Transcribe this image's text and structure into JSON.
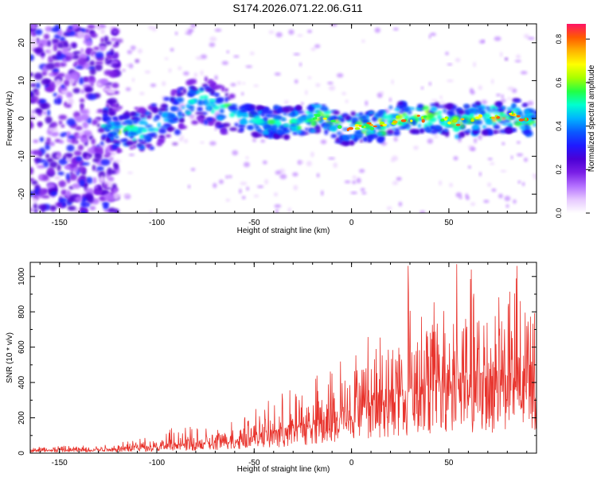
{
  "title": "S174.2026.071.22.06.G11",
  "colors": {
    "snr_line": "#e8332c",
    "frame": "#000000",
    "colormap": [
      "#ffffff",
      "#e6c8ff",
      "#b470ff",
      "#7a1fe6",
      "#4b00d6",
      "#1f1aff",
      "#0a5aff",
      "#00b4ff",
      "#00ffd0",
      "#22ff44",
      "#a8ff00",
      "#ffff00",
      "#ffb400",
      "#ff5a00",
      "#ff1466"
    ]
  },
  "chart_data": [
    {
      "type": "heatmap",
      "name": "spectrogram",
      "xlabel": "Height of straight line (km)",
      "ylabel": "Frequency (Hz)",
      "xlim": [
        -165,
        95
      ],
      "ylim": [
        -25,
        25
      ],
      "x_ticks": [
        -150,
        -100,
        -50,
        0,
        50
      ],
      "x_tick_labels": [
        "-150",
        "-100",
        "-50",
        "0",
        "50"
      ],
      "y_ticks": [
        -20,
        -10,
        0,
        10,
        20
      ],
      "y_tick_labels": [
        "-20",
        "-10",
        "0",
        "10",
        "20"
      ],
      "colorbar": {
        "label": "Normalized spectral amplitude",
        "range": [
          0.0,
          0.87
        ],
        "ticks": [
          0.0,
          0.2,
          0.4,
          0.6,
          0.8
        ],
        "tick_labels": [
          "0.0",
          "0.2",
          "0.4",
          "0.6",
          "0.8"
        ]
      },
      "ridge": {
        "x": [
          -125,
          -115,
          -105,
          -95,
          -85,
          -75,
          -65,
          -55,
          -45,
          -35,
          -25,
          -15,
          -5,
          5,
          15,
          25,
          35,
          45,
          55,
          65,
          75,
          85,
          95
        ],
        "y": [
          -2,
          -3,
          -3,
          0,
          4,
          5,
          2,
          0,
          -1,
          -1,
          -1,
          1,
          -3,
          -2,
          -2,
          0,
          0,
          0,
          -1,
          0,
          0,
          1,
          -2
        ]
      }
    },
    {
      "type": "line",
      "name": "snr",
      "xlabel": "Height of straight line (km)",
      "ylabel": "SNR (10 * v/v)",
      "xlim": [
        -165,
        95
      ],
      "ylim": [
        0,
        1080
      ],
      "x_ticks": [
        -150,
        -100,
        -50,
        0,
        50
      ],
      "x_tick_labels": [
        "-150",
        "-100",
        "-50",
        "0",
        "50"
      ],
      "y_ticks": [
        0,
        200,
        400,
        600,
        800,
        1000
      ],
      "y_tick_labels": [
        "0",
        "200",
        "400",
        "600",
        "800",
        "1000"
      ],
      "envelope": {
        "x": [
          -165,
          -130,
          -110,
          -90,
          -70,
          -60,
          -50,
          -40,
          -30,
          -20,
          -10,
          0,
          10,
          20,
          30,
          40,
          50,
          60,
          70,
          80,
          95
        ],
        "mean": [
          18,
          22,
          35,
          50,
          65,
          80,
          100,
          125,
          150,
          175,
          210,
          270,
          320,
          360,
          390,
          420,
          440,
          450,
          460,
          470,
          470
        ],
        "peak": [
          40,
          45,
          95,
          150,
          160,
          200,
          260,
          310,
          380,
          430,
          500,
          620,
          700,
          820,
          1060,
          900,
          950,
          1070,
          900,
          1060,
          860
        ]
      },
      "notable_peaks": [
        {
          "x": 29,
          "y": 1060
        },
        {
          "x": 54,
          "y": 1070
        },
        {
          "x": 85,
          "y": 1060
        }
      ]
    }
  ]
}
